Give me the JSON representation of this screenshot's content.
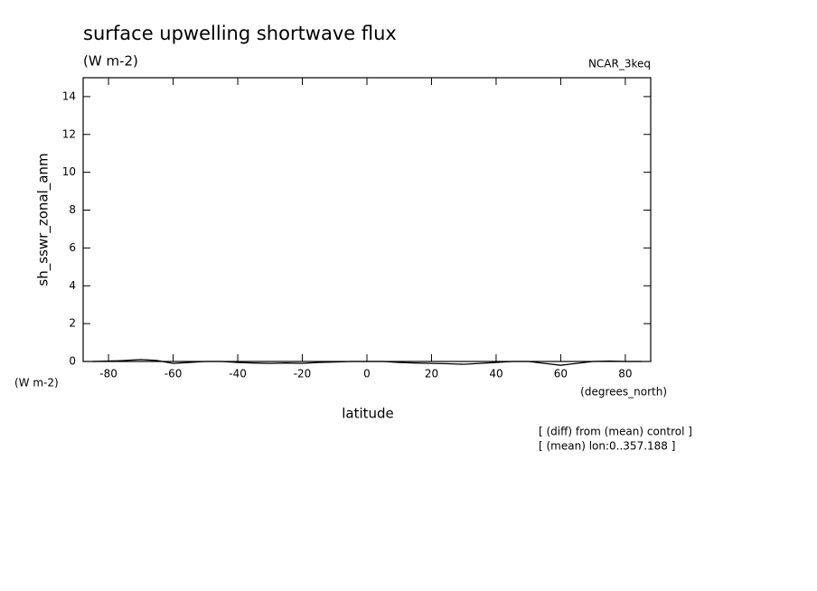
{
  "chart_data": {
    "type": "line",
    "title": "surface upwelling shortwave flux",
    "title_units": "(W m-2)",
    "dataset": "NCAR_3keq",
    "y_label": "sh_sswr_zonal_anm",
    "y_units": "(W m-2)",
    "x_label": "latitude",
    "x_units": "(degrees_north)",
    "notes": [
      "[ (diff) from (mean) control ]",
      "[ (mean) lon:0..357.188 ]"
    ],
    "x": [
      -85,
      -80,
      -75,
      -70,
      -65,
      -60,
      -55,
      -50,
      -45,
      -40,
      -35,
      -30,
      -25,
      -20,
      -15,
      -10,
      -5,
      0,
      5,
      10,
      15,
      20,
      25,
      30,
      35,
      40,
      45,
      50,
      55,
      60,
      65,
      70,
      75,
      80,
      85
    ],
    "series": [
      {
        "name": "sh_sswr_zonal_anm",
        "color": "#000000",
        "values": [
          0,
          0.02,
          0.05,
          0.1,
          0.05,
          -0.1,
          -0.05,
          0,
          0,
          -0.05,
          -0.08,
          -0.1,
          -0.08,
          -0.1,
          -0.05,
          -0.03,
          0,
          0,
          0,
          -0.05,
          -0.08,
          -0.1,
          -0.12,
          -0.15,
          -0.1,
          -0.05,
          0,
          0,
          -0.1,
          -0.2,
          -0.1,
          0,
          0.02,
          0,
          0
        ]
      }
    ],
    "xlim": [
      -87.86,
      87.86
    ],
    "xticks": [
      -80,
      -60,
      -40,
      -20,
      0,
      20,
      40,
      60,
      80
    ],
    "ylim": [
      0,
      15
    ],
    "yticks": [
      0,
      2,
      4,
      6,
      8,
      10,
      12,
      14
    ]
  }
}
